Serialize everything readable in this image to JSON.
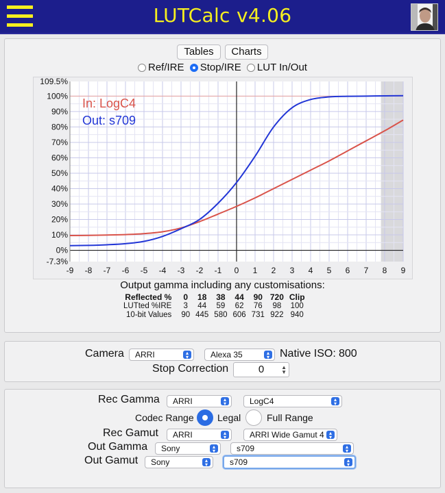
{
  "app": {
    "title": "LUTCalc v4.06"
  },
  "icons": {
    "menu": "hamburger-menu-icon",
    "avatar": "user-avatar"
  },
  "colors": {
    "header_bg": "#1c1e8c",
    "title": "#f6ef1f",
    "in_curve": "#d9534a",
    "out_curve": "#2236d6",
    "accent": "#2a6ce3"
  },
  "toolbar": {
    "tables_label": "Tables",
    "charts_label": "Charts"
  },
  "chart_mode": {
    "options": [
      "Ref/IRE",
      "Stop/IRE",
      "LUT In/Out"
    ],
    "selected": "Stop/IRE"
  },
  "chart_data": {
    "type": "line",
    "xlabel": "",
    "ylabel": "",
    "xlim": [
      -9,
      9
    ],
    "ylim": [
      -7.3,
      109.5
    ],
    "x_ticks": [
      "-9",
      "-8",
      "-7",
      "-6",
      "-5",
      "-4",
      "-3",
      "-2",
      "-1",
      "0",
      "1",
      "2",
      "3",
      "4",
      "5",
      "6",
      "7",
      "8",
      "9"
    ],
    "y_ticks": [
      "109.5%",
      "100%",
      "90%",
      "80%",
      "70%",
      "60%",
      "50%",
      "40%",
      "30%",
      "20%",
      "10%",
      "0%",
      "-7.3%"
    ],
    "grid": true,
    "legend_position": "top-left",
    "series": [
      {
        "name": "In: LogC4",
        "color": "#d9534a",
        "x": [
          -9,
          -8,
          -7,
          -6,
          -5,
          -4,
          -3,
          -2,
          -1,
          0,
          1,
          2,
          3,
          4,
          5,
          6,
          7,
          8,
          9
        ],
        "y": [
          9.6,
          9.7,
          9.9,
          10.2,
          10.8,
          12.0,
          14.5,
          18.6,
          23.5,
          28.5,
          34,
          40,
          46,
          52,
          58,
          64.5,
          71,
          77.5,
          84.5
        ]
      },
      {
        "name": "Out: s709",
        "color": "#2236d6",
        "x": [
          -9,
          -8,
          -7,
          -6,
          -5,
          -4,
          -3,
          -2,
          -1,
          0,
          1,
          2,
          3,
          4,
          5,
          6,
          7,
          8,
          9
        ],
        "y": [
          3.0,
          3.2,
          3.6,
          4.3,
          5.8,
          9.0,
          14.0,
          20.0,
          30.5,
          44.0,
          61.0,
          80.0,
          92.5,
          97.8,
          99.5,
          99.9,
          100.0,
          100.2,
          100.3
        ]
      }
    ]
  },
  "output_table": {
    "heading": "Output gamma including any customisations:",
    "headers": [
      "Reflected %",
      "0",
      "18",
      "38",
      "44",
      "90",
      "720",
      "Clip"
    ],
    "rows": [
      [
        "LUTted %IRE",
        "3",
        "44",
        "59",
        "62",
        "76",
        "98",
        "100"
      ],
      [
        "10-bit Values",
        "90",
        "445",
        "580",
        "606",
        "731",
        "922",
        "940"
      ]
    ]
  },
  "camera": {
    "label": "Camera",
    "maker": "ARRI",
    "model": "Alexa 35",
    "native_iso_label": "Native ISO:",
    "native_iso": "800",
    "stop_correction_label": "Stop Correction",
    "stop_correction": "0"
  },
  "rec": {
    "gamma_label": "Rec Gamma",
    "gamma_maker": "ARRI",
    "gamma_value": "LogC4",
    "codec_range_label": "Codec Range",
    "legal_label": "Legal",
    "full_label": "Full Range",
    "range_selected": "Legal",
    "gamut_label": "Rec Gamut",
    "gamut_maker": "ARRI",
    "gamut_value": "ARRI Wide Gamut 4",
    "out_gamma_label": "Out Gamma",
    "out_gamma_maker": "Sony",
    "out_gamma_value": "s709",
    "out_gamut_label": "Out Gamut",
    "out_gamut_maker": "Sony",
    "out_gamut_value": "s709"
  }
}
